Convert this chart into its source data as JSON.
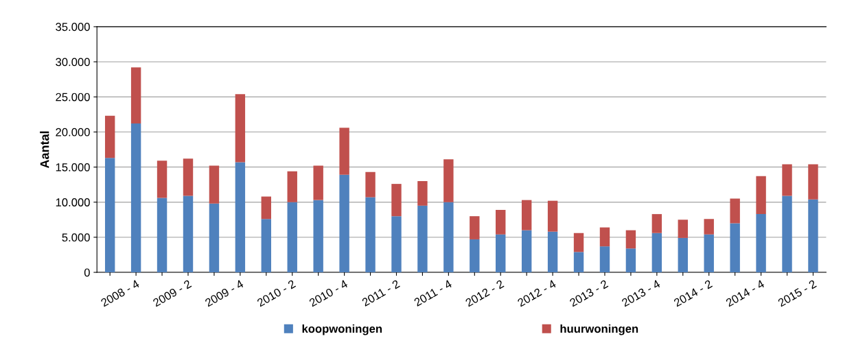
{
  "chart_data": {
    "type": "bar",
    "stacked": true,
    "ylabel": "Aantal",
    "categories": [
      null,
      "2008 - 4",
      null,
      "2009 - 2",
      null,
      "2009 - 4",
      null,
      "2010 - 2",
      null,
      "2010 - 4",
      null,
      "2011 - 2",
      null,
      "2011 - 4",
      null,
      "2012 - 2",
      null,
      "2012 - 4",
      null,
      "2013 - 2",
      null,
      "2013 - 4",
      null,
      "2014 - 2",
      null,
      "2014 - 4",
      null,
      "2015 - 2"
    ],
    "series": [
      {
        "name": "koopwoningen",
        "color": "#4f81bd",
        "values": [
          16300,
          21200,
          10600,
          10900,
          9800,
          15700,
          7600,
          10000,
          10300,
          13900,
          10700,
          8000,
          9500,
          10000,
          4700,
          5400,
          6000,
          5800,
          2900,
          3700,
          3400,
          5600,
          4900,
          5400,
          7000,
          8300,
          10900,
          10400
        ]
      },
      {
        "name": "huurwoningen",
        "color": "#c0504d",
        "values": [
          6000,
          8000,
          5300,
          5300,
          5400,
          9700,
          3200,
          4400,
          4900,
          6700,
          3600,
          4600,
          3500,
          6100,
          3300,
          3500,
          4300,
          4400,
          2700,
          2700,
          2600,
          2700,
          2600,
          2200,
          3500,
          5400,
          4500,
          5000
        ]
      }
    ],
    "ylim": [
      0,
      35000
    ],
    "yticks": [
      {
        "value": 0,
        "label": "0"
      },
      {
        "value": 5000,
        "label": "5.000"
      },
      {
        "value": 10000,
        "label": "10.000"
      },
      {
        "value": 15000,
        "label": "15.000"
      },
      {
        "value": 20000,
        "label": "20.000"
      },
      {
        "value": 25000,
        "label": "25.000"
      },
      {
        "value": 30000,
        "label": "30.000"
      },
      {
        "value": 35000,
        "label": "35.000"
      }
    ],
    "grid": "y",
    "legend": "bottom"
  }
}
